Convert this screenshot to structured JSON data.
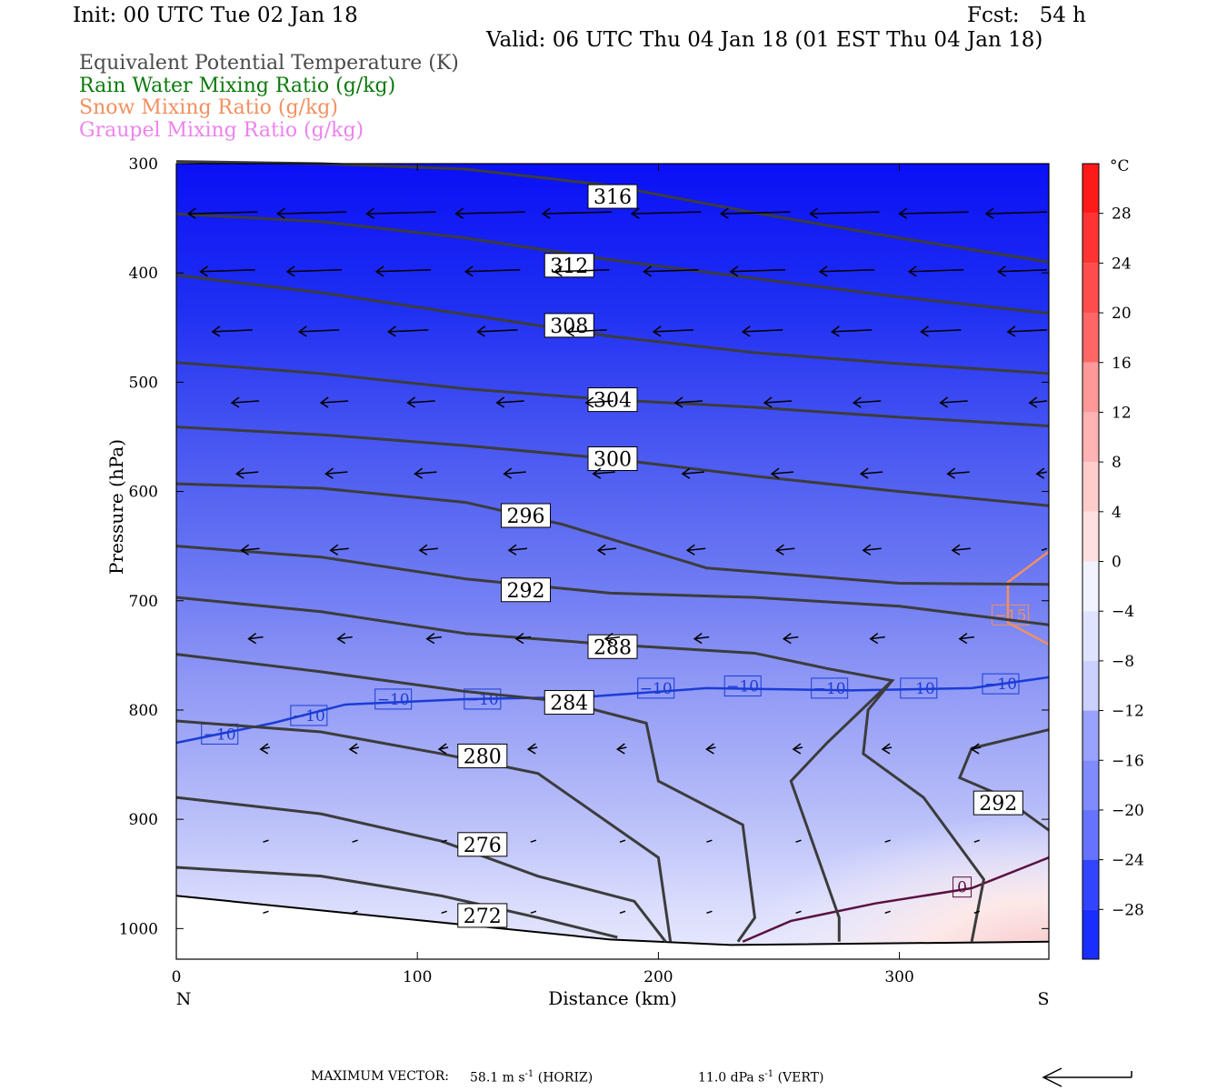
{
  "header": {
    "init": "Init: 00 UTC Tue 02 Jan 18",
    "fcst": "Fcst:   54 h",
    "valid": "Valid: 06 UTC Thu 04 Jan 18 (01 EST Thu 04 Jan 18)"
  },
  "legend": [
    {
      "label": "Equivalent Potential Temperature (K)",
      "color": "#4a4a4a"
    },
    {
      "label": "Rain Water Mixing Ratio (g/kg)",
      "color": "#0b7a0b"
    },
    {
      "label": "Snow Mixing Ratio (g/kg)",
      "color": "#f29060"
    },
    {
      "label": "Graupel Mixing Ratio (g/kg)",
      "color": "#ee82ee"
    }
  ],
  "footer": {
    "max_vector_label": "MAXIMUM VECTOR:",
    "horiz_value": "58.1 m s",
    "horiz_exp": "-1",
    "horiz_unit": "(HORIZ)",
    "vert_value": "11.0 dPa s",
    "vert_exp": "-1",
    "vert_unit": "(VERT)"
  },
  "chart_data": {
    "type": "contour",
    "xlabel": "Distance (km)",
    "ylabel": "Pressure (hPa)",
    "xlim": [
      0,
      362
    ],
    "ylim": [
      1028,
      300
    ],
    "x_ticks": [
      0,
      100,
      200,
      300
    ],
    "y_ticks": [
      300,
      400,
      500,
      600,
      700,
      800,
      900,
      1000
    ],
    "left_end_label": "N",
    "right_end_label": "S",
    "colorbar": {
      "unit": "°C",
      "tick_labels": [
        "28",
        "24",
        "20",
        "16",
        "12",
        "8",
        "4",
        "0",
        "−4",
        "−8",
        "−12",
        "−16",
        "−20",
        "−24",
        "−28"
      ],
      "tick_values": [
        28,
        24,
        20,
        16,
        12,
        8,
        4,
        0,
        -4,
        -8,
        -12,
        -16,
        -20,
        -24,
        -28
      ],
      "range": [
        -32,
        32
      ]
    },
    "theta_e_contours": [
      {
        "label": "316",
        "label_at": [
          181,
          330
        ],
        "points": [
          [
            0,
            298
          ],
          [
            60,
            300
          ],
          [
            120,
            305
          ],
          [
            180,
            320
          ],
          [
            240,
            345
          ],
          [
            300,
            368
          ],
          [
            362,
            390
          ]
        ]
      },
      {
        "label": "312",
        "label_at": [
          163,
          393
        ],
        "points": [
          [
            0,
            346
          ],
          [
            60,
            353
          ],
          [
            120,
            368
          ],
          [
            180,
            388
          ],
          [
            240,
            405
          ],
          [
            300,
            422
          ],
          [
            362,
            437
          ]
        ]
      },
      {
        "label": "308",
        "label_at": [
          163,
          448
        ],
        "points": [
          [
            0,
            402
          ],
          [
            60,
            418
          ],
          [
            120,
            438
          ],
          [
            180,
            458
          ],
          [
            240,
            473
          ],
          [
            300,
            483
          ],
          [
            362,
            492
          ]
        ]
      },
      {
        "label": "304",
        "label_at": [
          181,
          516
        ],
        "points": [
          [
            0,
            482
          ],
          [
            60,
            492
          ],
          [
            120,
            506
          ],
          [
            180,
            516
          ],
          [
            240,
            523
          ],
          [
            300,
            532
          ],
          [
            362,
            540
          ]
        ]
      },
      {
        "label": "300",
        "label_at": [
          181,
          570
        ],
        "points": [
          [
            0,
            541
          ],
          [
            60,
            548
          ],
          [
            120,
            558
          ],
          [
            180,
            570
          ],
          [
            240,
            586
          ],
          [
            300,
            600
          ],
          [
            362,
            613
          ]
        ]
      },
      {
        "label": "296",
        "label_at": [
          145,
          622
        ],
        "points": [
          [
            0,
            593
          ],
          [
            60,
            597
          ],
          [
            120,
            610
          ],
          [
            160,
            630
          ],
          [
            220,
            670
          ],
          [
            300,
            684
          ],
          [
            362,
            685
          ]
        ]
      },
      {
        "label": "292",
        "label_at": [
          145,
          690
        ],
        "points": [
          [
            0,
            650
          ],
          [
            60,
            660
          ],
          [
            120,
            680
          ],
          [
            180,
            693
          ],
          [
            240,
            697
          ],
          [
            300,
            705
          ],
          [
            362,
            722
          ]
        ]
      },
      {
        "label": "288",
        "label_at": [
          181,
          742
        ],
        "points": [
          [
            0,
            697
          ],
          [
            60,
            710
          ],
          [
            120,
            730
          ],
          [
            180,
            740
          ],
          [
            240,
            748
          ],
          [
            270,
            762
          ],
          [
            297,
            773
          ],
          [
            270,
            830
          ],
          [
            255,
            865
          ],
          [
            275,
            990
          ],
          [
            275,
            1012
          ]
        ]
      },
      {
        "label": "284",
        "label_at": [
          163,
          793
        ],
        "points": [
          [
            0,
            749
          ],
          [
            60,
            765
          ],
          [
            120,
            783
          ],
          [
            160,
            792
          ],
          [
            195,
            812
          ],
          [
            200,
            865
          ],
          [
            235,
            905
          ],
          [
            240,
            990
          ],
          [
            233,
            1012
          ]
        ]
      },
      {
        "label": "280",
        "label_at": [
          127,
          842
        ],
        "points": [
          [
            0,
            810
          ],
          [
            60,
            820
          ],
          [
            110,
            840
          ],
          [
            150,
            858
          ],
          [
            200,
            935
          ],
          [
            205,
            1012
          ]
        ]
      },
      {
        "label": "276",
        "label_at": [
          127,
          923
        ],
        "points": [
          [
            0,
            880
          ],
          [
            60,
            895
          ],
          [
            110,
            920
          ],
          [
            150,
            952
          ],
          [
            190,
            975
          ],
          [
            203,
            1012
          ]
        ]
      },
      {
        "label": "272",
        "label_at": [
          127,
          988
        ],
        "points": [
          [
            0,
            944
          ],
          [
            60,
            952
          ],
          [
            110,
            970
          ],
          [
            150,
            990
          ],
          [
            183,
            1008
          ]
        ]
      },
      {
        "label": "292",
        "label_at": [
          341,
          885
        ],
        "points": [
          [
            362,
            818
          ],
          [
            330,
            835
          ],
          [
            325,
            862
          ],
          [
            342,
            878
          ],
          [
            362,
            910
          ]
        ]
      },
      {
        "label": "",
        "label_at": null,
        "points": [
          [
            297,
            773
          ],
          [
            287,
            800
          ],
          [
            285,
            840
          ],
          [
            310,
            880
          ],
          [
            335,
            955
          ],
          [
            330,
            1012
          ]
        ]
      }
    ],
    "isotherms": [
      {
        "label": "−10",
        "color": "#1a3cd6",
        "points": [
          [
            0,
            830
          ],
          [
            40,
            812
          ],
          [
            70,
            795
          ],
          [
            120,
            790
          ],
          [
            170,
            788
          ],
          [
            220,
            780
          ],
          [
            280,
            782
          ],
          [
            330,
            780
          ],
          [
            362,
            770
          ]
        ],
        "label_positions": [
          [
            18,
            822
          ],
          [
            55,
            805
          ],
          [
            90,
            790
          ],
          [
            127,
            790
          ],
          [
            199,
            780
          ],
          [
            235,
            778
          ],
          [
            271,
            780
          ],
          [
            308,
            780
          ],
          [
            342,
            776
          ]
        ]
      },
      {
        "label": "0",
        "color": "#5a1040",
        "points": [
          [
            235,
            1012
          ],
          [
            255,
            993
          ],
          [
            290,
            977
          ],
          [
            330,
            963
          ],
          [
            362,
            935
          ]
        ],
        "label_positions": [
          [
            326,
            962
          ]
        ]
      },
      {
        "label": "−15",
        "color": "#f29060",
        "points": [
          [
            362,
            655
          ],
          [
            345,
            683
          ],
          [
            345,
            720
          ],
          [
            362,
            740
          ]
        ],
        "label_positions": [
          [
            346,
            713
          ]
        ]
      }
    ],
    "wind_rows": [
      {
        "p": 345,
        "xs": [
          5,
          42,
          79,
          116,
          152,
          189,
          226,
          263,
          300,
          336
        ],
        "len": 38
      },
      {
        "p": 398,
        "xs": [
          10,
          46,
          83,
          120,
          157,
          194,
          230,
          267,
          304,
          341
        ],
        "len": 30
      },
      {
        "p": 453,
        "xs": [
          15,
          51,
          88,
          125,
          162,
          198,
          235,
          272,
          309,
          345
        ],
        "len": 22
      },
      {
        "p": 518,
        "xs": [
          23,
          60,
          96,
          133,
          170,
          207,
          244,
          281,
          317,
          354
        ],
        "len": 15
      },
      {
        "p": 583,
        "xs": [
          25,
          62,
          99,
          136,
          173,
          210,
          247,
          284,
          320,
          357
        ],
        "len": 12
      },
      {
        "p": 653,
        "xs": [
          27,
          64,
          101,
          138,
          175,
          212,
          249,
          285,
          322,
          359
        ],
        "len": 10
      },
      {
        "p": 734,
        "xs": [
          30,
          67,
          104,
          141,
          178,
          215,
          252,
          288,
          325,
          362
        ],
        "len": 8
      },
      {
        "p": 835,
        "xs": [
          35,
          72,
          109,
          146,
          183,
          220,
          256,
          293,
          330
        ],
        "len": 5
      },
      {
        "p": 920,
        "xs": [
          36,
          73,
          110,
          147,
          184,
          220,
          257,
          294,
          331
        ],
        "len": 3
      },
      {
        "p": 985,
        "xs": [
          36,
          73,
          110,
          147,
          184,
          220,
          257,
          294,
          331
        ],
        "len": 3
      }
    ]
  }
}
